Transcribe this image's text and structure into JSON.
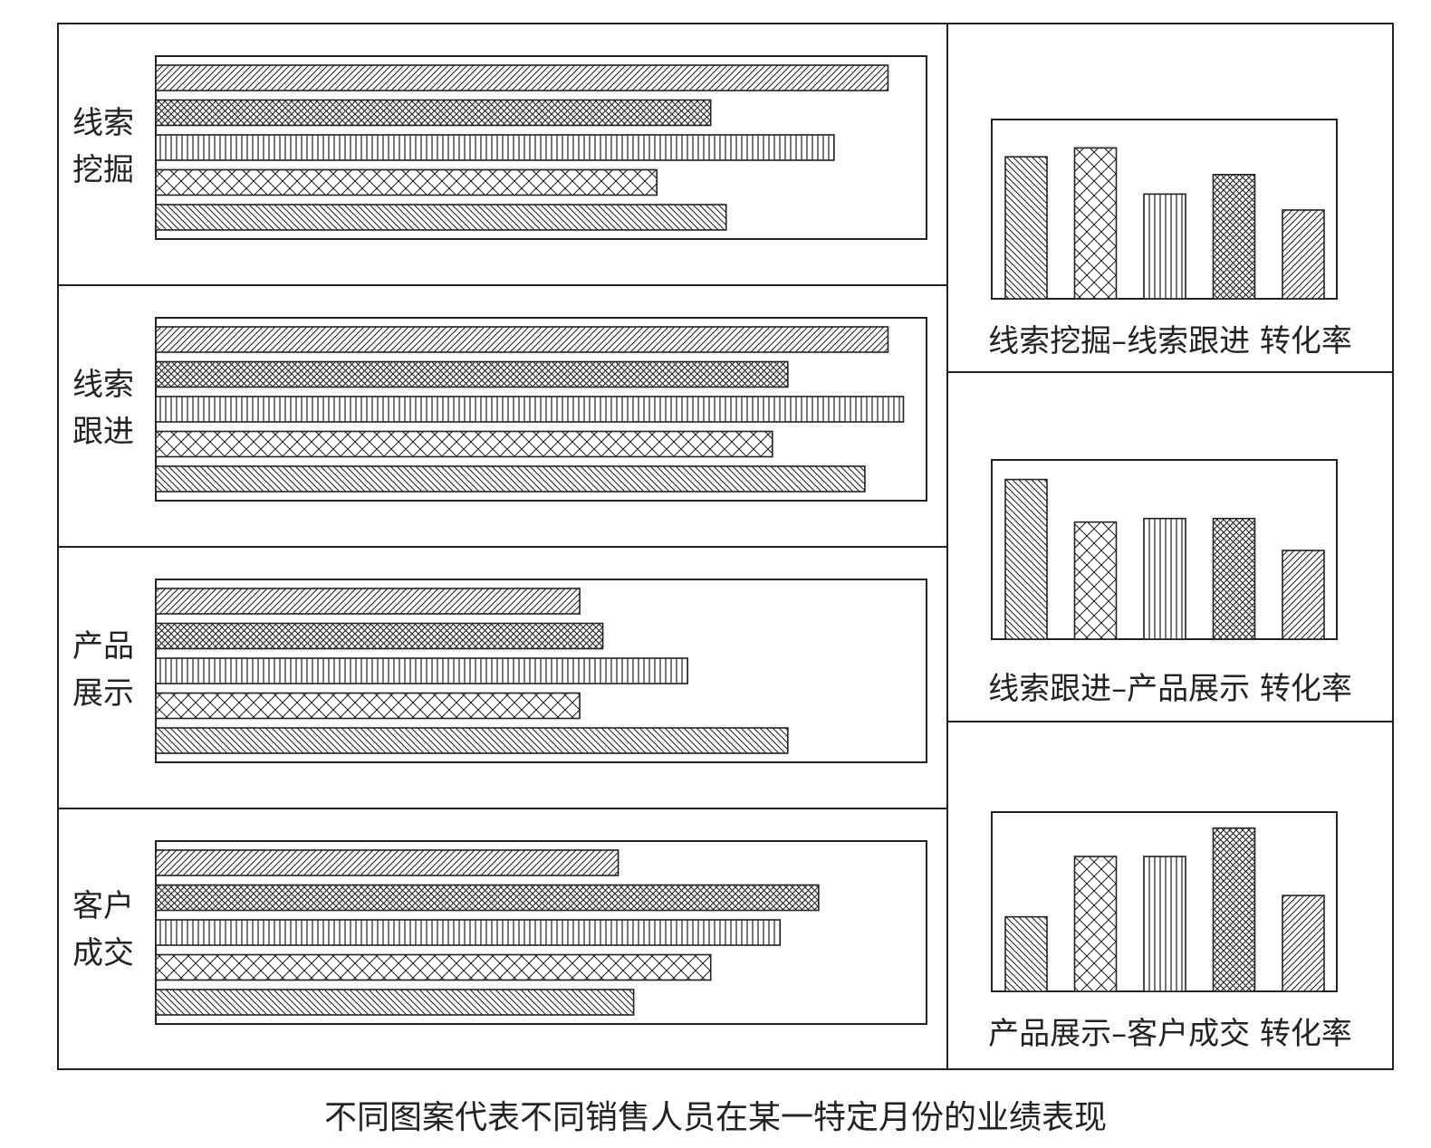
{
  "caption": "不同图案代表不同销售人员在某一特定月份的业绩表现",
  "patterns": [
    "diagonal",
    "dense-crosshatch",
    "vertical",
    "crosshatch",
    "back-diagonal"
  ],
  "chart_data": [
    {
      "type": "bar",
      "orientation": "horizontal",
      "label": "线索挖掘",
      "label_lines": [
        "线索",
        "挖掘"
      ],
      "series_patterns": [
        "diagonal",
        "dense-crosshatch",
        "vertical",
        "crosshatch",
        "back-diagonal"
      ],
      "values": [
        95,
        72,
        88,
        65,
        74
      ],
      "xlim": [
        0,
        100
      ]
    },
    {
      "type": "bar",
      "orientation": "horizontal",
      "label": "线索跟进",
      "label_lines": [
        "线索",
        "跟进"
      ],
      "series_patterns": [
        "diagonal",
        "dense-crosshatch",
        "vertical",
        "crosshatch",
        "back-diagonal"
      ],
      "values": [
        95,
        82,
        97,
        80,
        92
      ],
      "xlim": [
        0,
        100
      ]
    },
    {
      "type": "bar",
      "orientation": "horizontal",
      "label": "产品展示",
      "label_lines": [
        "产品",
        "展示"
      ],
      "series_patterns": [
        "diagonal",
        "dense-crosshatch",
        "vertical",
        "crosshatch",
        "back-diagonal"
      ],
      "values": [
        55,
        58,
        69,
        55,
        82
      ],
      "xlim": [
        0,
        100
      ]
    },
    {
      "type": "bar",
      "orientation": "horizontal",
      "label": "客户成交",
      "label_lines": [
        "客户",
        "成交"
      ],
      "series_patterns": [
        "diagonal",
        "dense-crosshatch",
        "vertical",
        "crosshatch",
        "back-diagonal"
      ],
      "values": [
        60,
        86,
        81,
        72,
        62
      ],
      "xlim": [
        0,
        100
      ]
    },
    {
      "type": "bar",
      "orientation": "vertical",
      "title": "线索挖掘–线索跟进 转化率",
      "series_patterns": [
        "back-diagonal",
        "crosshatch",
        "vertical",
        "dense-crosshatch",
        "diagonal"
      ],
      "values": [
        80,
        85,
        59,
        70,
        50
      ],
      "ylim": [
        0,
        100
      ]
    },
    {
      "type": "bar",
      "orientation": "vertical",
      "title": "线索跟进–产品展示 转化率",
      "series_patterns": [
        "back-diagonal",
        "crosshatch",
        "vertical",
        "dense-crosshatch",
        "diagonal"
      ],
      "values": [
        90,
        66,
        68,
        68,
        50
      ],
      "ylim": [
        0,
        100
      ]
    },
    {
      "type": "bar",
      "orientation": "vertical",
      "title": "产品展示–客户成交 转化率",
      "series_patterns": [
        "back-diagonal",
        "crosshatch",
        "vertical",
        "dense-crosshatch",
        "diagonal"
      ],
      "values": [
        42,
        76,
        76,
        92,
        54
      ],
      "ylim": [
        0,
        100
      ]
    }
  ]
}
